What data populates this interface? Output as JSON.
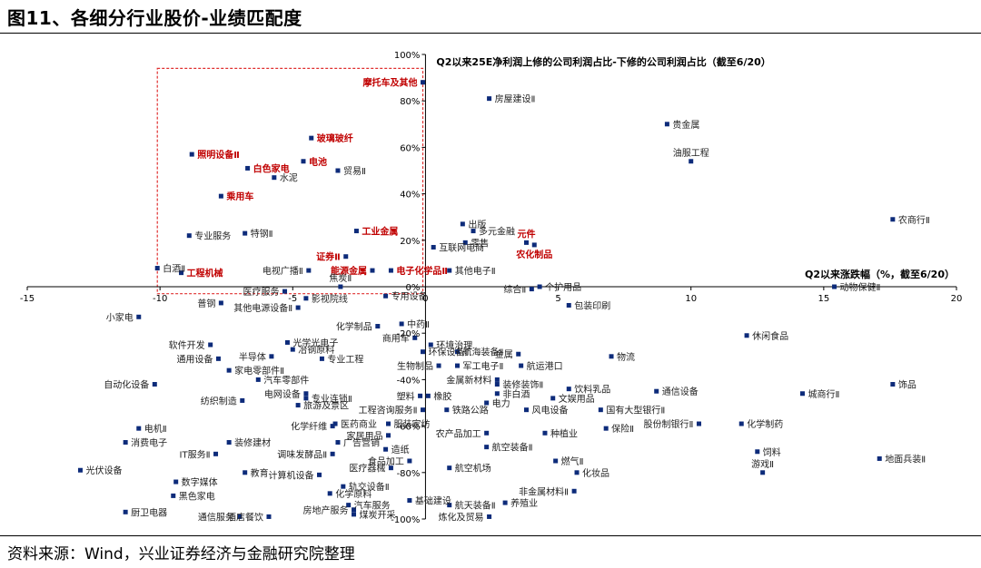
{
  "figure_title": "图11、各细分行业股价-业绩匹配度",
  "source": "资料来源：Wind，兴业证券经济与金融研究院整理",
  "colors": {
    "marker": "#0d2b7a",
    "highlight": "#c00000",
    "box": "#e03030",
    "axis": "#000000"
  },
  "chart_data": {
    "type": "scatter",
    "xlabel": "Q2以来涨跌幅（%，截至6/20）",
    "ylabel": "Q2以来25E净利润上修的公司利润占比-下修的公司利润占比（截至6/20）",
    "xlim": [
      -15,
      20
    ],
    "ylim": [
      -100,
      100
    ],
    "x_ticks": [
      "-15",
      "-10",
      "-5",
      "0",
      "5",
      "10",
      "15",
      "20"
    ],
    "y_ticks": [
      "-100%",
      "-80%",
      "-60%",
      "-40%",
      "-20%",
      "0%",
      "20%",
      "40%",
      "60%",
      "80%",
      "100%"
    ],
    "grid": false,
    "points": [
      {
        "label": "摩托车及其他",
        "x": -0.1,
        "y": 88,
        "hl": true,
        "pos": "l"
      },
      {
        "label": "房屋建设Ⅱ",
        "x": 2.4,
        "y": 81,
        "pos": "r"
      },
      {
        "label": "贵金属",
        "x": 9.1,
        "y": 70,
        "pos": "r"
      },
      {
        "label": "油服工程",
        "x": 10.0,
        "y": 54,
        "pos": "t"
      },
      {
        "label": "玻璃玻纤",
        "x": -4.3,
        "y": 64,
        "hl": true,
        "pos": "r"
      },
      {
        "label": "照明设备Ⅱ",
        "x": -8.8,
        "y": 57,
        "hl": true,
        "pos": "r"
      },
      {
        "label": "电池",
        "x": -4.6,
        "y": 54,
        "hl": true,
        "pos": "r"
      },
      {
        "label": "白色家电",
        "x": -6.7,
        "y": 51,
        "hl": true,
        "pos": "r"
      },
      {
        "label": "贸易Ⅱ",
        "x": -3.3,
        "y": 50,
        "pos": "r"
      },
      {
        "label": "水泥",
        "x": -5.7,
        "y": 47,
        "pos": "r"
      },
      {
        "label": "乘用车",
        "x": -7.7,
        "y": 39,
        "hl": true,
        "pos": "r"
      },
      {
        "label": "专业服务",
        "x": -8.9,
        "y": 22,
        "pos": "r"
      },
      {
        "label": "特钢Ⅱ",
        "x": -6.8,
        "y": 23,
        "pos": "r"
      },
      {
        "label": "工业金属",
        "x": -2.6,
        "y": 24,
        "hl": true,
        "pos": "r"
      },
      {
        "label": "出版",
        "x": 1.4,
        "y": 27,
        "pos": "r"
      },
      {
        "label": "多元金融",
        "x": 1.8,
        "y": 24,
        "pos": "r"
      },
      {
        "label": "零售",
        "x": 1.5,
        "y": 19,
        "pos": "r"
      },
      {
        "label": "互联网电商",
        "x": 0.3,
        "y": 17,
        "pos": "r"
      },
      {
        "label": "元件",
        "x": 3.8,
        "y": 19,
        "hl": true,
        "pos": "t"
      },
      {
        "label": "农化制品",
        "x": 4.1,
        "y": 18,
        "hl": true,
        "pos": "b"
      },
      {
        "label": "农商行Ⅱ",
        "x": 17.6,
        "y": 29,
        "pos": "r"
      },
      {
        "label": "证券Ⅱ",
        "x": -3.0,
        "y": 13,
        "hl": true,
        "pos": "l"
      },
      {
        "label": "白酒Ⅱ",
        "x": -10.1,
        "y": 8,
        "pos": "r"
      },
      {
        "label": "工程机械",
        "x": -9.2,
        "y": 6,
        "hl": true,
        "pos": "r"
      },
      {
        "label": "电视广播Ⅱ",
        "x": -4.4,
        "y": 7,
        "pos": "l"
      },
      {
        "label": "能源金属",
        "x": -2.0,
        "y": 7,
        "hl": true,
        "pos": "l"
      },
      {
        "label": "电子化学品Ⅱ",
        "x": -1.3,
        "y": 7,
        "hl": true,
        "pos": "r"
      },
      {
        "label": "其他电子Ⅱ",
        "x": 0.9,
        "y": 7,
        "pos": "r"
      },
      {
        "label": "焦炭Ⅱ",
        "x": -3.2,
        "y": 0,
        "pos": "t"
      },
      {
        "label": "医疗服务",
        "x": -5.3,
        "y": -2,
        "pos": "l"
      },
      {
        "label": "影视院线",
        "x": -4.5,
        "y": -5,
        "pos": "r"
      },
      {
        "label": "专用设备",
        "x": -1.5,
        "y": -4,
        "pos": "r"
      },
      {
        "label": "综合Ⅱ",
        "x": 4.0,
        "y": -1,
        "pos": "l"
      },
      {
        "label": "个护用品",
        "x": 4.3,
        "y": 0,
        "pos": "r"
      },
      {
        "label": "包装印刷",
        "x": 5.4,
        "y": -8,
        "pos": "r"
      },
      {
        "label": "动物保健Ⅱ",
        "x": 15.4,
        "y": 0,
        "pos": "r"
      },
      {
        "label": "普钢",
        "x": -7.7,
        "y": -7,
        "pos": "l"
      },
      {
        "label": "其他电源设备Ⅱ",
        "x": -4.8,
        "y": -9,
        "pos": "l"
      },
      {
        "label": "小家电",
        "x": -10.8,
        "y": -13,
        "pos": "l"
      },
      {
        "label": "化学制品",
        "x": -1.8,
        "y": -17,
        "pos": "l"
      },
      {
        "label": "中药Ⅱ",
        "x": -0.9,
        "y": -16,
        "pos": "r"
      },
      {
        "label": "商用车",
        "x": -0.4,
        "y": -22,
        "pos": "l"
      },
      {
        "label": "光学光电子",
        "x": -5.2,
        "y": -24,
        "pos": "r"
      },
      {
        "label": "软件开发",
        "x": -8.1,
        "y": -25,
        "pos": "l"
      },
      {
        "label": "冶钢原料",
        "x": -5.0,
        "y": -27,
        "pos": "r"
      },
      {
        "label": "环境治理",
        "x": 0.2,
        "y": -25,
        "pos": "r"
      },
      {
        "label": "环保设备Ⅱ",
        "x": -0.1,
        "y": -28,
        "pos": "r"
      },
      {
        "label": "航海装备Ⅱ",
        "x": 1.2,
        "y": -28,
        "pos": "r"
      },
      {
        "label": "金属",
        "x": 3.5,
        "y": -29,
        "pos": "l"
      },
      {
        "label": "物流",
        "x": 7.0,
        "y": -30,
        "pos": "r"
      },
      {
        "label": "休闲食品",
        "x": 12.1,
        "y": -21,
        "pos": "r"
      },
      {
        "label": "通用设备",
        "x": -7.8,
        "y": -31,
        "pos": "l"
      },
      {
        "label": "半导体",
        "x": -5.8,
        "y": -30,
        "pos": "l"
      },
      {
        "label": "专业工程",
        "x": -3.9,
        "y": -31,
        "pos": "r"
      },
      {
        "label": "生物制品",
        "x": 0.5,
        "y": -34,
        "pos": "l"
      },
      {
        "label": "军工电子Ⅱ",
        "x": 1.2,
        "y": -34,
        "pos": "r"
      },
      {
        "label": "航运港口",
        "x": 3.6,
        "y": -34,
        "pos": "r"
      },
      {
        "label": "家电零部件Ⅱ",
        "x": -7.4,
        "y": -36,
        "pos": "r"
      },
      {
        "label": "自动化设备",
        "x": -10.2,
        "y": -42,
        "pos": "l"
      },
      {
        "label": "汽车零部件",
        "x": -6.3,
        "y": -40,
        "pos": "r"
      },
      {
        "label": "金属新材料",
        "x": 2.7,
        "y": -40,
        "pos": "l"
      },
      {
        "label": "装修装饰Ⅱ",
        "x": 2.7,
        "y": -42,
        "pos": "r"
      },
      {
        "label": "饮料乳品",
        "x": 5.4,
        "y": -44,
        "pos": "r"
      },
      {
        "label": "通信设备",
        "x": 8.7,
        "y": -45,
        "pos": "r"
      },
      {
        "label": "城商行Ⅱ",
        "x": 14.2,
        "y": -46,
        "pos": "r"
      },
      {
        "label": "饰品",
        "x": 17.6,
        "y": -42,
        "pos": "r"
      },
      {
        "label": "电网设备",
        "x": -4.5,
        "y": -46,
        "pos": "l"
      },
      {
        "label": "纺织制造",
        "x": -6.9,
        "y": -49,
        "pos": "l"
      },
      {
        "label": "专业连锁Ⅱ",
        "x": -4.5,
        "y": -48,
        "pos": "r"
      },
      {
        "label": "塑料",
        "x": -0.2,
        "y": -47,
        "pos": "l"
      },
      {
        "label": "橡胶",
        "x": 0.1,
        "y": -47,
        "pos": "r"
      },
      {
        "label": "非白酒",
        "x": 2.7,
        "y": -46,
        "pos": "r"
      },
      {
        "label": "文娱用品",
        "x": 4.8,
        "y": -48,
        "pos": "r"
      },
      {
        "label": "旅游及景区",
        "x": -4.8,
        "y": -51,
        "pos": "r"
      },
      {
        "label": "工程咨询服务Ⅱ",
        "x": -0.1,
        "y": -53,
        "pos": "l"
      },
      {
        "label": "铁路公路",
        "x": 0.8,
        "y": -53,
        "pos": "r"
      },
      {
        "label": "电力",
        "x": 2.3,
        "y": -50,
        "pos": "r"
      },
      {
        "label": "风电设备",
        "x": 3.8,
        "y": -53,
        "pos": "r"
      },
      {
        "label": "国有大型银行Ⅱ",
        "x": 6.6,
        "y": -53,
        "pos": "r"
      },
      {
        "label": "化学纤维",
        "x": -3.5,
        "y": -60,
        "pos": "l"
      },
      {
        "label": "医药商业",
        "x": -3.4,
        "y": -59,
        "pos": "r"
      },
      {
        "label": "服装家纺",
        "x": -1.4,
        "y": -59,
        "pos": "r"
      },
      {
        "label": "农产品加工",
        "x": 2.3,
        "y": -63,
        "pos": "l"
      },
      {
        "label": "种植业",
        "x": 4.5,
        "y": -63,
        "pos": "r"
      },
      {
        "label": "保险Ⅱ",
        "x": 6.8,
        "y": -61,
        "pos": "r"
      },
      {
        "label": "股份制银行Ⅱ",
        "x": 10.3,
        "y": -59,
        "pos": "l"
      },
      {
        "label": "化学制药",
        "x": 11.9,
        "y": -59,
        "pos": "r"
      },
      {
        "label": "电机Ⅱ",
        "x": -10.8,
        "y": -61,
        "pos": "r"
      },
      {
        "label": "消费电子",
        "x": -11.3,
        "y": -67,
        "pos": "r"
      },
      {
        "label": "装修建材",
        "x": -7.4,
        "y": -67,
        "pos": "r"
      },
      {
        "label": "家居用品",
        "x": -1.4,
        "y": -64,
        "pos": "l"
      },
      {
        "label": "广告营销",
        "x": -3.3,
        "y": -67,
        "pos": "r"
      },
      {
        "label": "航空装备Ⅱ",
        "x": 2.3,
        "y": -69,
        "pos": "r"
      },
      {
        "label": "饲料",
        "x": 12.5,
        "y": -71,
        "pos": "r"
      },
      {
        "label": "地面兵装Ⅱ",
        "x": 17.1,
        "y": -74,
        "pos": "r"
      },
      {
        "label": "IT服务Ⅱ",
        "x": -7.9,
        "y": -72,
        "pos": "l"
      },
      {
        "label": "调味发酵品Ⅱ",
        "x": -3.5,
        "y": -72,
        "pos": "l"
      },
      {
        "label": "造纸",
        "x": -1.5,
        "y": -70,
        "pos": "r"
      },
      {
        "label": "食品加工",
        "x": -0.6,
        "y": -75,
        "pos": "l"
      },
      {
        "label": "燃气Ⅱ",
        "x": 4.9,
        "y": -75,
        "pos": "r"
      },
      {
        "label": "游戏Ⅱ",
        "x": 12.7,
        "y": -80,
        "pos": "t"
      },
      {
        "label": "光伏设备",
        "x": -13.0,
        "y": -79,
        "pos": "r"
      },
      {
        "label": "教育",
        "x": -6.8,
        "y": -80,
        "pos": "r"
      },
      {
        "label": "计算机设备",
        "x": -4.0,
        "y": -81,
        "pos": "l"
      },
      {
        "label": "医疗器械",
        "x": -1.3,
        "y": -78,
        "pos": "l"
      },
      {
        "label": "航空机场",
        "x": 0.9,
        "y": -78,
        "pos": "r"
      },
      {
        "label": "化妆品",
        "x": 5.7,
        "y": -80,
        "pos": "r"
      },
      {
        "label": "数字媒体",
        "x": -9.4,
        "y": -84,
        "pos": "r"
      },
      {
        "label": "轨交设备Ⅱ",
        "x": -3.1,
        "y": -86,
        "pos": "r"
      },
      {
        "label": "化学原料",
        "x": -3.6,
        "y": -89,
        "pos": "r"
      },
      {
        "label": "非金属材料Ⅱ",
        "x": 5.6,
        "y": -88,
        "pos": "l"
      },
      {
        "label": "黑色家电",
        "x": -9.5,
        "y": -90,
        "pos": "r"
      },
      {
        "label": "汽车服务",
        "x": -2.9,
        "y": -94,
        "pos": "r"
      },
      {
        "label": "基础建设",
        "x": -0.6,
        "y": -92,
        "pos": "r"
      },
      {
        "label": "航天装备Ⅱ",
        "x": 0.9,
        "y": -94,
        "pos": "r"
      },
      {
        "label": "养殖业",
        "x": 3.0,
        "y": -93,
        "pos": "r"
      },
      {
        "label": "厨卫电器",
        "x": -11.3,
        "y": -97,
        "pos": "r"
      },
      {
        "label": "通信服务",
        "x": -7.0,
        "y": -99,
        "pos": "l"
      },
      {
        "label": "酒店餐饮",
        "x": -5.9,
        "y": -99,
        "pos": "l"
      },
      {
        "label": "房地产服务",
        "x": -2.7,
        "y": -96,
        "pos": "l"
      },
      {
        "label": "煤炭开采",
        "x": -2.7,
        "y": -98,
        "pos": "r"
      },
      {
        "label": "炼化及贸易",
        "x": 2.4,
        "y": -99,
        "pos": "l"
      }
    ],
    "highlight_box": {
      "x": [
        -10.1,
        -0.1
      ],
      "y": [
        -3,
        94
      ]
    }
  }
}
